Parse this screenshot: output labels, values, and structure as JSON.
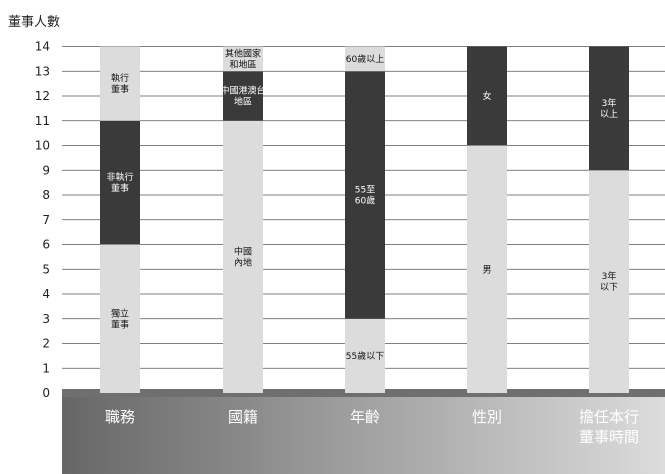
{
  "chart_data": {
    "type": "bar",
    "stacked": true,
    "ylabel": "董事人數",
    "ylim": [
      0,
      14
    ],
    "yticks": [
      0,
      1,
      2,
      3,
      4,
      5,
      6,
      7,
      8,
      9,
      10,
      11,
      12,
      13,
      14
    ],
    "grid": true,
    "categories": [
      {
        "label": "職務",
        "segments": [
          {
            "label": "獨立董事",
            "value": 6,
            "color": "#dcdcdc"
          },
          {
            "label": "非執行董事",
            "value": 5,
            "color": "#3a3a3a"
          },
          {
            "label": "執行董事",
            "value": 3,
            "color": "#dcdcdc"
          }
        ]
      },
      {
        "label": "國籍",
        "segments": [
          {
            "label": "中國內地",
            "value": 11,
            "color": "#dcdcdc"
          },
          {
            "label": "中國港澳台地區",
            "value": 2,
            "color": "#3a3a3a"
          },
          {
            "label": "其他國家和地區",
            "value": 1,
            "color": "#dcdcdc"
          }
        ]
      },
      {
        "label": "年齡",
        "segments": [
          {
            "label": "55歲以下",
            "value": 3,
            "color": "#dcdcdc"
          },
          {
            "label": "55至60歲",
            "value": 10,
            "color": "#3a3a3a"
          },
          {
            "label": "60歲以上",
            "value": 1,
            "color": "#dcdcdc"
          }
        ]
      },
      {
        "label": "性別",
        "segments": [
          {
            "label": "男",
            "value": 10,
            "color": "#dcdcdc"
          },
          {
            "label": "女",
            "value": 4,
            "color": "#3a3a3a"
          }
        ]
      },
      {
        "label": "擔任本行董事時間",
        "segments": [
          {
            "label": "3年以下",
            "value": 9,
            "color": "#dcdcdc"
          },
          {
            "label": "3年以上",
            "value": 5,
            "color": "#3a3a3a"
          }
        ]
      }
    ]
  },
  "segment_text": [
    [
      [
        "獨立",
        "董事"
      ],
      [
        "非執行",
        "董事"
      ],
      [
        "執行",
        "董事"
      ]
    ],
    [
      [
        "中國",
        "內地"
      ],
      [
        "中國港澳台",
        "地區"
      ],
      [
        "其他國家",
        "和地區"
      ]
    ],
    [
      [
        "55歲以下"
      ],
      [
        "55至",
        "60歲"
      ],
      [
        "60歲以上"
      ]
    ],
    [
      [
        "男"
      ],
      [
        "女"
      ]
    ],
    [
      [
        "3年",
        "以下"
      ],
      [
        "3年",
        "以上"
      ]
    ]
  ],
  "category_text": [
    [
      "職務"
    ],
    [
      "國籍"
    ],
    [
      "年齡"
    ],
    [
      "性別"
    ],
    [
      "擔任本行",
      "董事時間"
    ]
  ],
  "colors": {
    "dark_segment": "#3a3a3a",
    "light_segment": "#dcdcdc",
    "floor_band": "#6f6f6f",
    "category_panel_top": "#666666",
    "category_panel_bottom": "#dcdcdc",
    "category_text": "#ffffff",
    "grid": "#555555",
    "axis_text": "#222222"
  }
}
